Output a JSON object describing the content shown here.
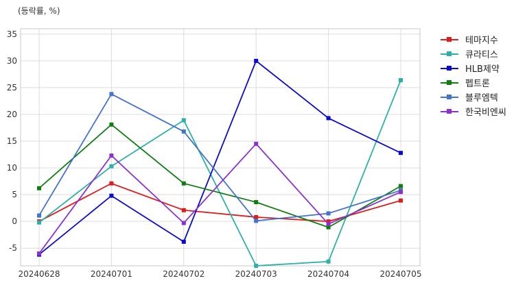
{
  "chart_data": {
    "type": "line",
    "title": "",
    "ylabel": "(등락률, %)",
    "xlabel": "",
    "x": [
      "20240628",
      "20240701",
      "20240702",
      "20240703",
      "20240704",
      "20240705"
    ],
    "ylim": [
      -8.3,
      36
    ],
    "yticks": [
      -5,
      0,
      5,
      10,
      15,
      20,
      25,
      30,
      35
    ],
    "grid": true,
    "legend_position": "outside-top-right",
    "series": [
      {
        "name": "테마지수",
        "color": "#dd1c1c",
        "values": [
          0.0,
          7.1,
          2.1,
          0.8,
          0.0,
          3.9
        ]
      },
      {
        "name": "큐라티스",
        "color": "#2db0a8",
        "values": [
          -0.2,
          10.3,
          18.9,
          -8.3,
          -7.5,
          26.4
        ]
      },
      {
        "name": "HLB제약",
        "color": "#0a0ad0",
        "values": [
          -6.2,
          4.8,
          -3.8,
          30.0,
          19.3,
          12.8
        ]
      },
      {
        "name": "펩트론",
        "color": "#0f7d0f",
        "values": [
          6.2,
          18.1,
          7.1,
          3.6,
          -1.1,
          6.6
        ]
      },
      {
        "name": "블루엠텍",
        "color": "#4472cc",
        "values": [
          1.1,
          23.8,
          16.8,
          0.1,
          1.5,
          5.8
        ]
      },
      {
        "name": "한국비엔씨",
        "color": "#8a32d0",
        "values": [
          -6.0,
          12.3,
          -0.3,
          14.5,
          -0.5,
          5.5
        ]
      }
    ]
  }
}
